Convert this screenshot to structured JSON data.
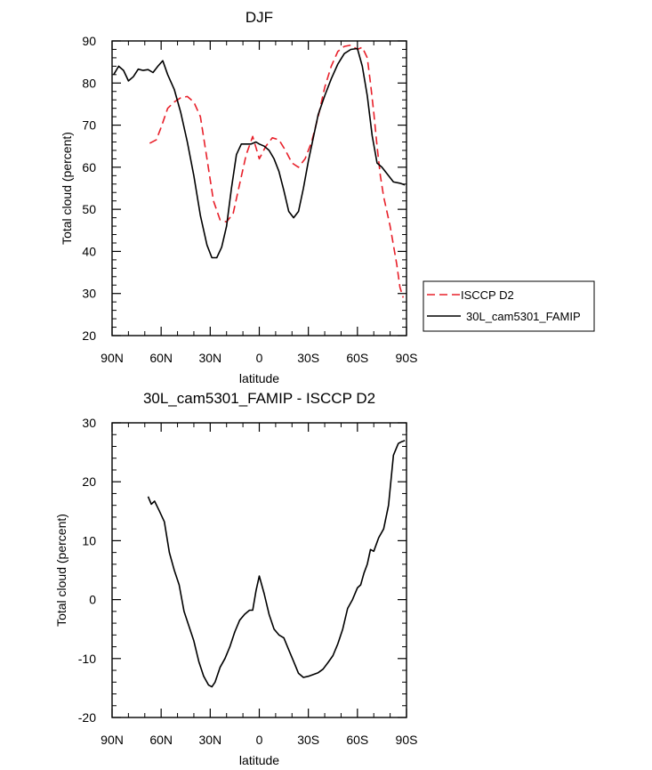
{
  "chart_data": [
    {
      "type": "line",
      "title": "DJF",
      "xlabel": "latitude",
      "ylabel": "Total cloud (percent)",
      "xlim": [
        90,
        -90
      ],
      "ylim": [
        20,
        90
      ],
      "x_ticks": [
        {
          "value": 90,
          "label": "90N"
        },
        {
          "value": 60,
          "label": "60N"
        },
        {
          "value": 30,
          "label": "30N"
        },
        {
          "value": 0,
          "label": "0"
        },
        {
          "value": -30,
          "label": "30S"
        },
        {
          "value": -60,
          "label": "60S"
        },
        {
          "value": -90,
          "label": "90S"
        }
      ],
      "y_ticks": [
        20,
        30,
        40,
        50,
        60,
        70,
        80,
        90
      ],
      "grid": false,
      "legend_position": "right",
      "series": [
        {
          "name": "ISCCP D2",
          "color": "#e8202a",
          "dash": "dashed",
          "x": [
            67,
            63,
            60,
            56,
            52,
            48,
            44,
            40,
            36,
            32,
            28,
            24,
            20,
            16,
            12,
            8,
            4,
            0,
            -4,
            -8,
            -12,
            -16,
            -20,
            -24,
            -28,
            -32,
            -36,
            -40,
            -44,
            -48,
            -52,
            -56,
            -60,
            -63,
            -66,
            -68,
            -70,
            -72,
            -74,
            -76,
            -80,
            -84,
            -86,
            -88
          ],
          "y": [
            65.7,
            66.5,
            69.5,
            74,
            75.5,
            76.5,
            76.8,
            75.5,
            72,
            62,
            52,
            47.5,
            47,
            49,
            56,
            63,
            67.3,
            62,
            65,
            67,
            66.5,
            64,
            61,
            60,
            62,
            66,
            72,
            79,
            84,
            87.5,
            88.7,
            89,
            88,
            88.5,
            86,
            80,
            73,
            65,
            58,
            53,
            46,
            37,
            31.5,
            29
          ]
        },
        {
          "name": "30L_cam5301_FAMIP",
          "color": "#000000",
          "dash": "solid",
          "x": [
            89,
            86,
            83,
            80,
            77,
            74,
            71,
            68,
            65,
            62,
            59,
            56,
            52,
            48,
            44,
            40,
            36,
            32,
            29,
            26,
            23,
            20,
            17,
            14,
            11,
            8,
            5,
            2,
            0,
            -3,
            -6,
            -9,
            -12,
            -15,
            -18,
            -21,
            -24,
            -27,
            -30,
            -33,
            -36,
            -40,
            -44,
            -48,
            -52,
            -56,
            -60,
            -63,
            -66,
            -69,
            -72,
            -75,
            -78,
            -82,
            -86,
            -89
          ],
          "y": [
            82,
            84,
            83,
            80.5,
            81.5,
            83.3,
            83,
            83.2,
            82.5,
            84,
            85.3,
            82,
            78.5,
            73,
            66,
            58,
            48.5,
            41.5,
            38.5,
            38.5,
            41,
            46,
            55,
            63,
            65.5,
            65.5,
            65.5,
            66,
            65.5,
            65,
            64,
            62,
            59,
            54.5,
            49.5,
            48,
            49.5,
            55,
            61.5,
            67,
            72.5,
            77,
            81,
            84.5,
            87,
            88,
            88.2,
            84,
            77,
            67.5,
            61,
            60,
            58.5,
            56.5,
            56.2,
            55.8
          ]
        }
      ]
    },
    {
      "type": "line",
      "title": "30L_cam5301_FAMIP - ISCCP D2",
      "xlabel": "latitude",
      "ylabel": "Total cloud (percent)",
      "xlim": [
        90,
        -90
      ],
      "ylim": [
        -20,
        30
      ],
      "x_ticks": [
        {
          "value": 90,
          "label": "90N"
        },
        {
          "value": 60,
          "label": "60N"
        },
        {
          "value": 30,
          "label": "30N"
        },
        {
          "value": 0,
          "label": "0"
        },
        {
          "value": -30,
          "label": "30S"
        },
        {
          "value": -60,
          "label": "60S"
        },
        {
          "value": -90,
          "label": "90S"
        }
      ],
      "y_ticks": [
        -20,
        -10,
        0,
        10,
        20,
        30
      ],
      "grid": false,
      "series": [
        {
          "color": "#000000",
          "dash": "solid",
          "x": [
            68,
            66,
            64,
            61,
            58,
            55,
            52,
            49,
            46,
            43,
            40,
            37,
            34,
            31,
            29,
            27,
            24,
            21,
            18,
            15,
            12,
            9,
            6,
            4,
            2,
            0,
            -3,
            -6,
            -9,
            -12,
            -15,
            -18,
            -21,
            -24,
            -27,
            -30,
            -33,
            -36,
            -39,
            -42,
            -45,
            -48,
            -51,
            -54,
            -57,
            -60,
            -62,
            -64,
            -66,
            -68,
            -70,
            -73,
            -76,
            -79,
            -82,
            -85,
            -87,
            -89
          ],
          "y": [
            17.5,
            16.2,
            16.7,
            15,
            13.2,
            8,
            5,
            2.5,
            -2,
            -4.5,
            -7,
            -10.5,
            -13,
            -14.5,
            -14.8,
            -14,
            -11.5,
            -10,
            -8,
            -5.5,
            -3.5,
            -2.5,
            -1.8,
            -1.8,
            1.5,
            4,
            1,
            -2.5,
            -5,
            -6,
            -6.5,
            -8.5,
            -10.5,
            -12.5,
            -13.2,
            -13,
            -12.7,
            -12.4,
            -11.8,
            -10.7,
            -9.5,
            -7.5,
            -5,
            -1.5,
            0,
            2,
            2.5,
            4.5,
            6,
            8.5,
            8.2,
            10.5,
            12,
            16,
            24.5,
            26.5,
            26.8,
            27
          ]
        }
      ]
    }
  ]
}
